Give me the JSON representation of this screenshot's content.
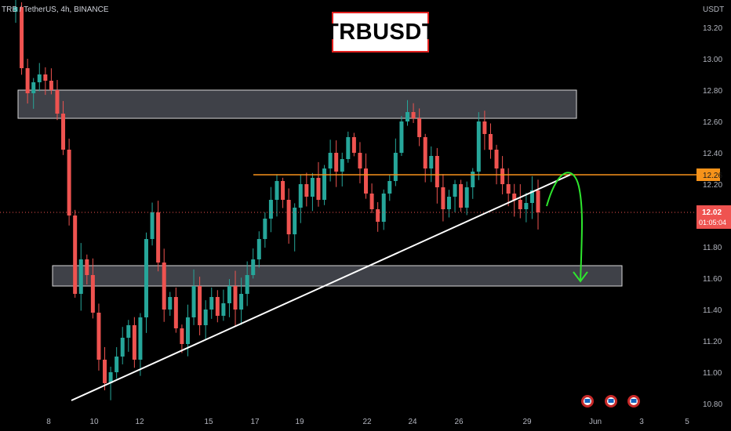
{
  "header": {
    "symbol_info": "TRB / TetherUS, 4h, BINANCE",
    "title_badge": "TRBUSDT"
  },
  "colors": {
    "background": "#000000",
    "bull_candle": "#26a69a",
    "bear_candle": "#ef5350",
    "zone_fill": "#4a4c55",
    "resistance_line": "#f7931a",
    "trendline": "#ffffff",
    "projection_arrow": "#2ee62e",
    "price_line": "#ef5350",
    "badge_border": "#e0201e"
  },
  "chart_data": {
    "type": "candlestick",
    "title": "TRBUSDT",
    "y_axis": {
      "unit_label": "USDT",
      "range": [
        10.76,
        13.34
      ],
      "ticks": [
        "13.20",
        "13.00",
        "12.80",
        "12.60",
        "12.40",
        "12.20",
        "11.80",
        "11.60",
        "11.40",
        "11.20",
        "11.00",
        "10.80"
      ]
    },
    "x_axis": {
      "ticks": [
        "8",
        "10",
        "12",
        "15",
        "17",
        "19",
        "22",
        "24",
        "26",
        "29",
        "Jun",
        "3",
        "5"
      ]
    },
    "price_levels": {
      "resistance": {
        "value": 12.26,
        "label": "12.26"
      },
      "current_price": {
        "value": 12.02,
        "label": "12.02",
        "countdown": "01:05:04"
      }
    },
    "zones": [
      {
        "name": "upper-zone",
        "top": 12.8,
        "bottom": 12.62
      },
      {
        "name": "lower-zone",
        "top": 11.68,
        "bottom": 11.55
      }
    ],
    "trendline": {
      "from": {
        "date": "9",
        "price": 10.82
      },
      "to": {
        "date": "31",
        "price": 12.26
      }
    },
    "projection": {
      "from_price": 12.26,
      "to_price": 11.65
    },
    "close_series": [
      13.33,
      12.94,
      12.78,
      12.85,
      12.9,
      12.86,
      12.8,
      12.65,
      12.42,
      12.0,
      11.5,
      11.72,
      11.62,
      11.38,
      11.08,
      10.93,
      11.0,
      11.1,
      11.22,
      11.3,
      11.08,
      11.35,
      11.85,
      12.02,
      11.7,
      11.4,
      11.48,
      11.28,
      11.18,
      11.35,
      11.55,
      11.3,
      11.4,
      11.48,
      11.36,
      11.44,
      11.55,
      11.4,
      11.5,
      11.62,
      11.72,
      11.85,
      11.98,
      12.1,
      12.22,
      12.1,
      11.88,
      12.05,
      12.2,
      12.12,
      12.24,
      12.1,
      12.3,
      12.4,
      12.28,
      12.36,
      12.5,
      12.4,
      12.3,
      12.14,
      12.04,
      11.96,
      12.14,
      12.22,
      12.4,
      12.6,
      12.66,
      12.62,
      12.5,
      12.3,
      12.38,
      12.18,
      12.04,
      12.12,
      12.2,
      12.05,
      12.18,
      12.28,
      12.6,
      12.52,
      12.42,
      12.3,
      12.2,
      12.14,
      12.1,
      12.04,
      12.08,
      12.16,
      12.02
    ]
  },
  "alerts": {
    "count": 3
  }
}
